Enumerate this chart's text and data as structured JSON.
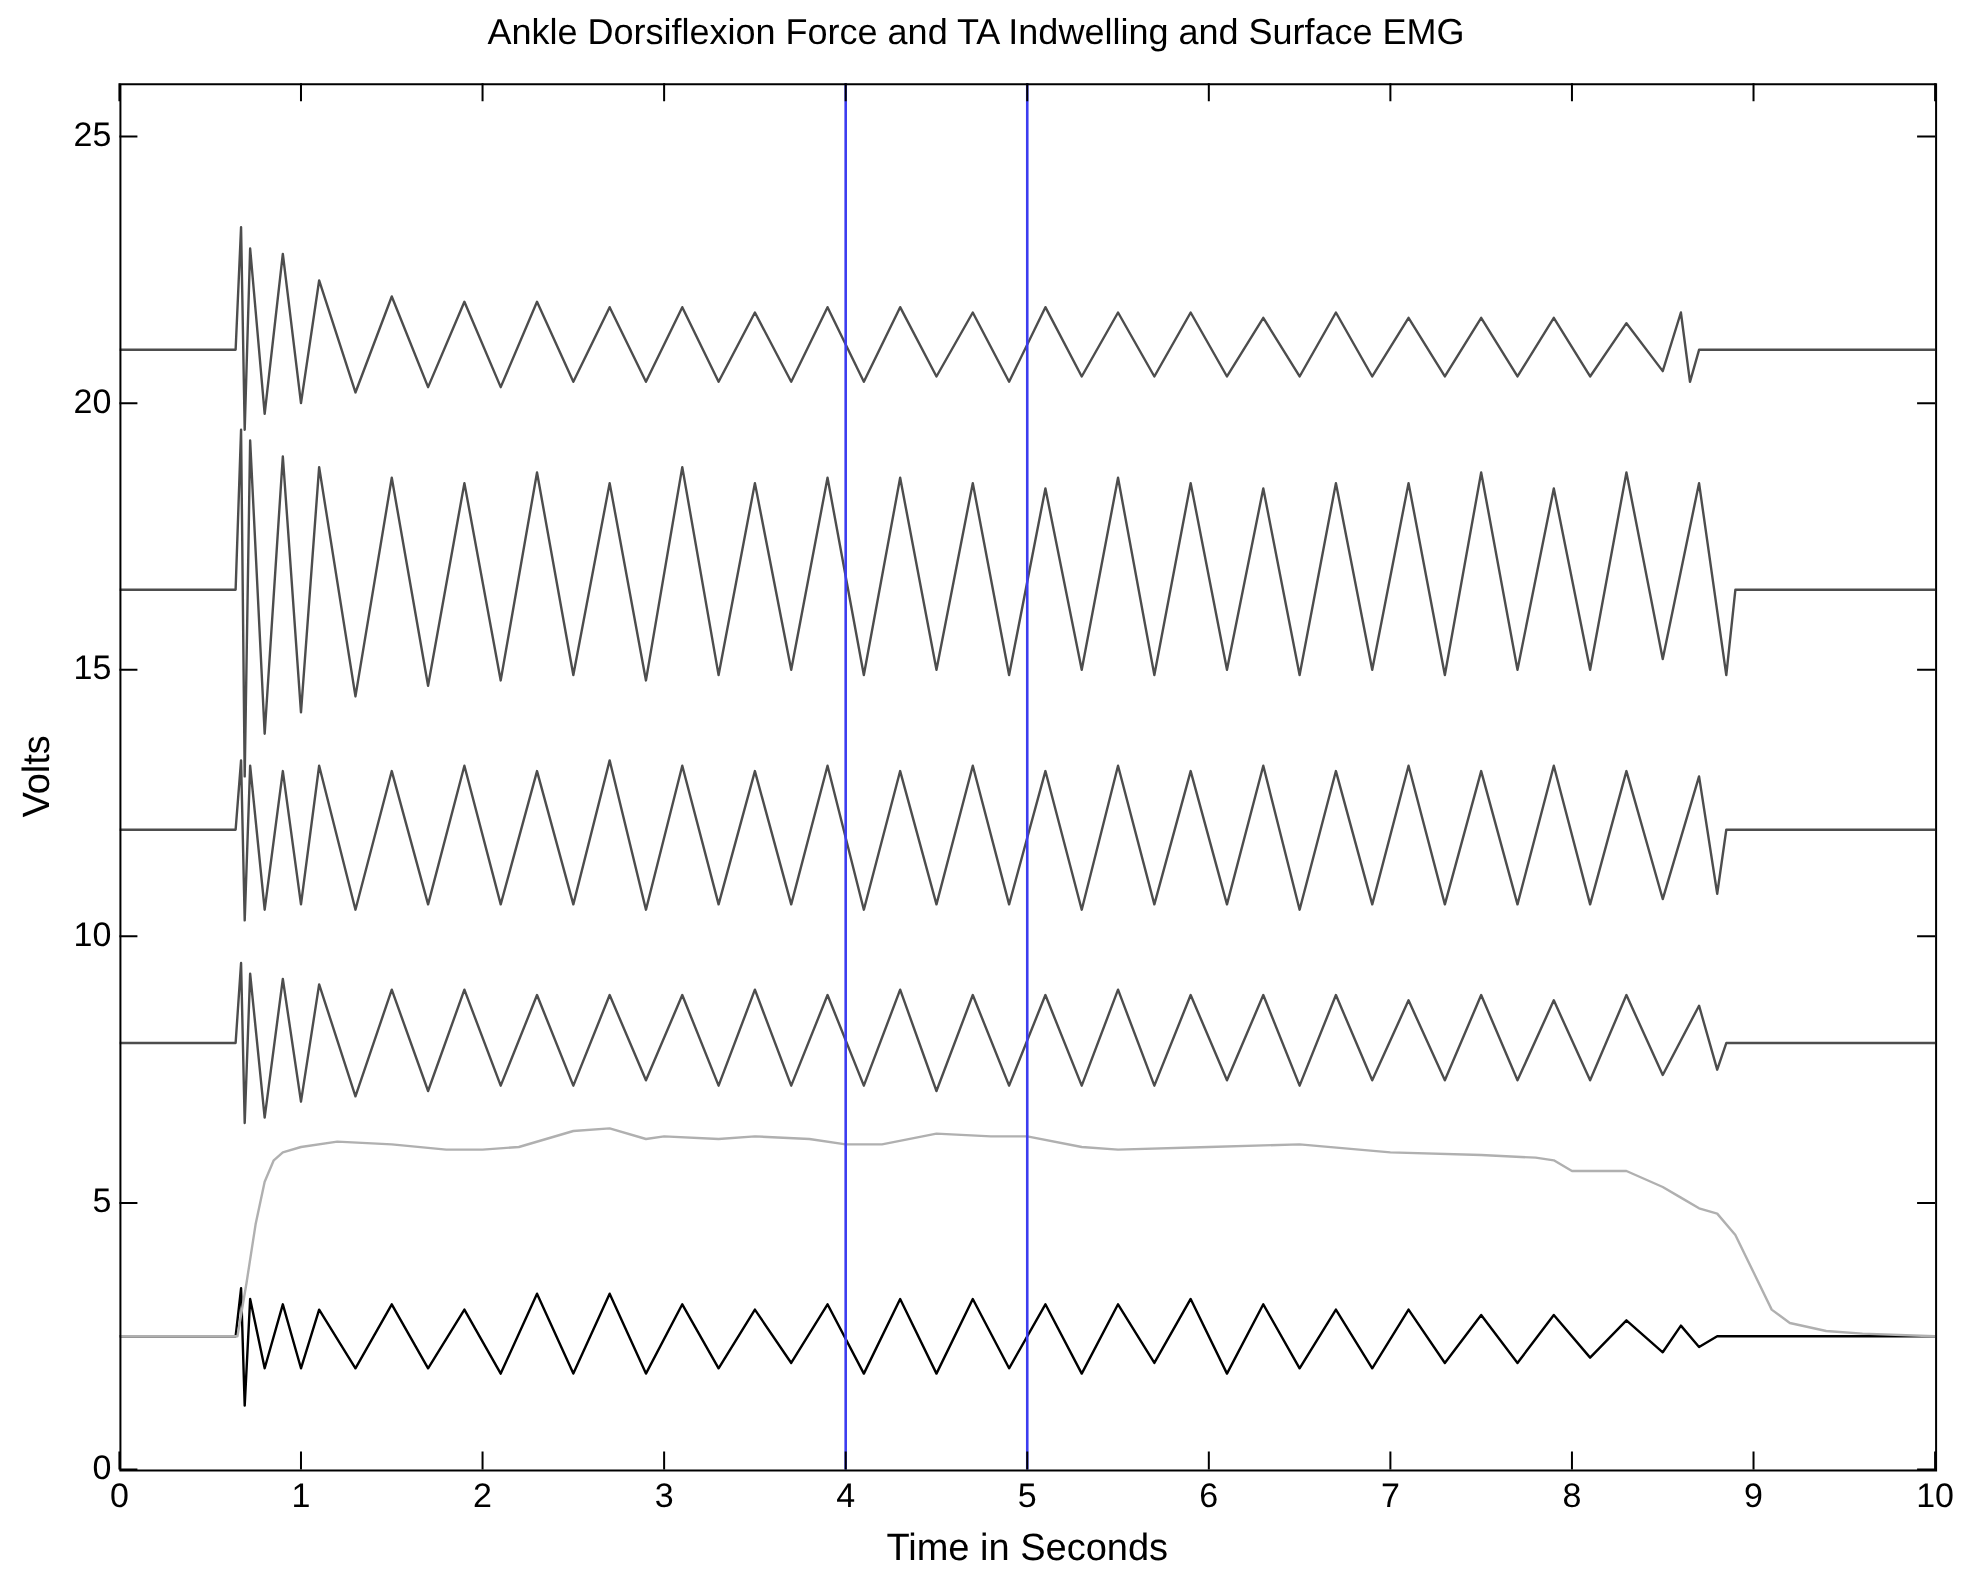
{
  "chart_data": {
    "type": "line",
    "title": "Ankle Dorsiflexion Force and TA Indwelling and Surface EMG",
    "xlabel": "Time in Seconds",
    "ylabel": "Volts",
    "xlim": [
      0,
      10
    ],
    "xticks": [
      0,
      1,
      2,
      3,
      4,
      5,
      6,
      7,
      8,
      9,
      10
    ],
    "ylim": [
      0,
      26
    ],
    "yticks": [
      0,
      5,
      10,
      15,
      20,
      25
    ],
    "marker": "none",
    "line_style": "solid",
    "ref_lines": [
      {
        "axis": "x",
        "value": 4,
        "color": "#3c3cf0"
      },
      {
        "axis": "x",
        "value": 5,
        "color": "#3c3cf0"
      }
    ],
    "series": [
      {
        "color": "#4d4d4d",
        "x": [
          0,
          0.64,
          0.67,
          0.69,
          0.72,
          0.8,
          0.9,
          1.0,
          1.1,
          1.3,
          1.5,
          1.7,
          1.9,
          2.1,
          2.3,
          2.5,
          2.7,
          2.9,
          3.1,
          3.3,
          3.5,
          3.7,
          3.9,
          4.1,
          4.3,
          4.5,
          4.7,
          4.9,
          5.1,
          5.3,
          5.5,
          5.7,
          5.9,
          6.1,
          6.3,
          6.5,
          6.7,
          6.9,
          7.1,
          7.3,
          7.5,
          7.7,
          7.9,
          8.1,
          8.3,
          8.5,
          8.6,
          8.65,
          8.7,
          10
        ],
        "values": [
          21,
          21,
          23.3,
          19.5,
          22.9,
          19.8,
          22.8,
          20.0,
          22.3,
          20.2,
          22.0,
          20.3,
          21.9,
          20.3,
          21.9,
          20.4,
          21.8,
          20.4,
          21.8,
          20.4,
          21.7,
          20.4,
          21.8,
          20.4,
          21.8,
          20.5,
          21.7,
          20.4,
          21.8,
          20.5,
          21.7,
          20.5,
          21.7,
          20.5,
          21.6,
          20.5,
          21.7,
          20.5,
          21.6,
          20.5,
          21.6,
          20.5,
          21.6,
          20.5,
          21.5,
          20.6,
          21.7,
          20.4,
          21,
          21
        ]
      },
      {
        "color": "#4d4d4d",
        "x": [
          0,
          0.64,
          0.67,
          0.69,
          0.72,
          0.8,
          0.9,
          1.0,
          1.1,
          1.3,
          1.5,
          1.7,
          1.9,
          2.1,
          2.3,
          2.5,
          2.7,
          2.9,
          3.1,
          3.3,
          3.5,
          3.7,
          3.9,
          4.1,
          4.3,
          4.5,
          4.7,
          4.9,
          5.1,
          5.3,
          5.5,
          5.7,
          5.9,
          6.1,
          6.3,
          6.5,
          6.7,
          6.9,
          7.1,
          7.3,
          7.5,
          7.7,
          7.9,
          8.1,
          8.3,
          8.5,
          8.7,
          8.85,
          8.9,
          10
        ],
        "values": [
          16.5,
          16.5,
          19.5,
          13.0,
          19.3,
          13.8,
          19.0,
          14.2,
          18.8,
          14.5,
          18.6,
          14.7,
          18.5,
          14.8,
          18.7,
          14.9,
          18.5,
          14.8,
          18.8,
          14.9,
          18.5,
          15.0,
          18.6,
          14.9,
          18.6,
          15.0,
          18.5,
          14.9,
          18.4,
          15.0,
          18.6,
          14.9,
          18.5,
          15.0,
          18.4,
          14.9,
          18.5,
          15.0,
          18.5,
          14.9,
          18.7,
          15.0,
          18.4,
          15.0,
          18.7,
          15.2,
          18.5,
          14.9,
          16.5,
          16.5
        ]
      },
      {
        "color": "#4d4d4d",
        "x": [
          0,
          0.64,
          0.67,
          0.69,
          0.72,
          0.8,
          0.9,
          1.0,
          1.1,
          1.3,
          1.5,
          1.7,
          1.9,
          2.1,
          2.3,
          2.5,
          2.7,
          2.9,
          3.1,
          3.3,
          3.5,
          3.7,
          3.9,
          4.1,
          4.3,
          4.5,
          4.7,
          4.9,
          5.1,
          5.3,
          5.5,
          5.7,
          5.9,
          6.1,
          6.3,
          6.5,
          6.7,
          6.9,
          7.1,
          7.3,
          7.5,
          7.7,
          7.9,
          8.1,
          8.3,
          8.5,
          8.7,
          8.8,
          8.85,
          10
        ],
        "values": [
          12,
          12,
          13.3,
          10.3,
          13.2,
          10.5,
          13.1,
          10.6,
          13.2,
          10.5,
          13.1,
          10.6,
          13.2,
          10.6,
          13.1,
          10.6,
          13.3,
          10.5,
          13.2,
          10.6,
          13.1,
          10.6,
          13.2,
          10.5,
          13.1,
          10.6,
          13.2,
          10.6,
          13.1,
          10.5,
          13.2,
          10.6,
          13.1,
          10.6,
          13.2,
          10.5,
          13.1,
          10.6,
          13.2,
          10.6,
          13.1,
          10.6,
          13.2,
          10.6,
          13.1,
          10.7,
          13.0,
          10.8,
          12,
          12
        ]
      },
      {
        "color": "#4d4d4d",
        "x": [
          0,
          0.64,
          0.67,
          0.69,
          0.72,
          0.8,
          0.9,
          1.0,
          1.1,
          1.3,
          1.5,
          1.7,
          1.9,
          2.1,
          2.3,
          2.5,
          2.7,
          2.9,
          3.1,
          3.3,
          3.5,
          3.7,
          3.9,
          4.1,
          4.3,
          4.5,
          4.7,
          4.9,
          5.1,
          5.3,
          5.5,
          5.7,
          5.9,
          6.1,
          6.3,
          6.5,
          6.7,
          6.9,
          7.1,
          7.3,
          7.5,
          7.7,
          7.9,
          8.1,
          8.3,
          8.5,
          8.7,
          8.8,
          8.85,
          10
        ],
        "values": [
          8,
          8,
          9.5,
          6.5,
          9.3,
          6.6,
          9.2,
          6.9,
          9.1,
          7.0,
          9.0,
          7.1,
          9.0,
          7.2,
          8.9,
          7.2,
          8.9,
          7.3,
          8.9,
          7.2,
          9.0,
          7.2,
          8.9,
          7.2,
          9.0,
          7.1,
          8.9,
          7.2,
          8.9,
          7.2,
          9.0,
          7.2,
          8.9,
          7.3,
          8.9,
          7.2,
          8.9,
          7.3,
          8.8,
          7.3,
          8.9,
          7.3,
          8.8,
          7.3,
          8.9,
          7.4,
          8.7,
          7.5,
          8,
          8
        ]
      },
      {
        "color": "#b0b0b0",
        "x": [
          0,
          0.65,
          0.7,
          0.75,
          0.8,
          0.85,
          0.9,
          1.0,
          1.2,
          1.5,
          1.8,
          2.0,
          2.2,
          2.5,
          2.7,
          2.9,
          3.0,
          3.3,
          3.5,
          3.8,
          4.0,
          4.2,
          4.5,
          4.8,
          5.0,
          5.3,
          5.5,
          6.0,
          6.5,
          7.0,
          7.5,
          7.8,
          7.9,
          8.0,
          8.3,
          8.5,
          8.6,
          8.7,
          8.8,
          8.9,
          9.0,
          9.1,
          9.2,
          9.4,
          9.6,
          10
        ],
        "values": [
          2.5,
          2.5,
          3.5,
          4.6,
          5.4,
          5.8,
          5.95,
          6.05,
          6.15,
          6.1,
          6.0,
          6.0,
          6.05,
          6.35,
          6.4,
          6.2,
          6.25,
          6.2,
          6.25,
          6.2,
          6.1,
          6.1,
          6.3,
          6.25,
          6.25,
          6.05,
          6.0,
          6.05,
          6.1,
          5.95,
          5.9,
          5.85,
          5.8,
          5.6,
          5.6,
          5.3,
          5.1,
          4.9,
          4.8,
          4.4,
          3.7,
          3.0,
          2.75,
          2.6,
          2.55,
          2.5
        ]
      },
      {
        "color": "#000000",
        "x": [
          0,
          0.64,
          0.67,
          0.69,
          0.72,
          0.8,
          0.9,
          1.0,
          1.1,
          1.3,
          1.5,
          1.7,
          1.9,
          2.1,
          2.3,
          2.5,
          2.7,
          2.9,
          3.1,
          3.3,
          3.5,
          3.7,
          3.9,
          4.1,
          4.3,
          4.5,
          4.7,
          4.9,
          5.1,
          5.3,
          5.5,
          5.7,
          5.9,
          6.1,
          6.3,
          6.5,
          6.7,
          6.9,
          7.1,
          7.3,
          7.5,
          7.7,
          7.9,
          8.1,
          8.3,
          8.5,
          8.6,
          8.7,
          8.8,
          10
        ],
        "values": [
          2.5,
          2.5,
          3.4,
          1.2,
          3.2,
          1.9,
          3.1,
          1.9,
          3.0,
          1.9,
          3.1,
          1.9,
          3.0,
          1.8,
          3.3,
          1.8,
          3.3,
          1.8,
          3.1,
          1.9,
          3.0,
          2.0,
          3.1,
          1.8,
          3.2,
          1.8,
          3.2,
          1.9,
          3.1,
          1.8,
          3.1,
          2.0,
          3.2,
          1.8,
          3.1,
          1.9,
          3.0,
          1.9,
          3.0,
          2.0,
          2.9,
          2.0,
          2.9,
          2.1,
          2.8,
          2.2,
          2.7,
          2.3,
          2.5,
          2.5
        ]
      }
    ]
  }
}
